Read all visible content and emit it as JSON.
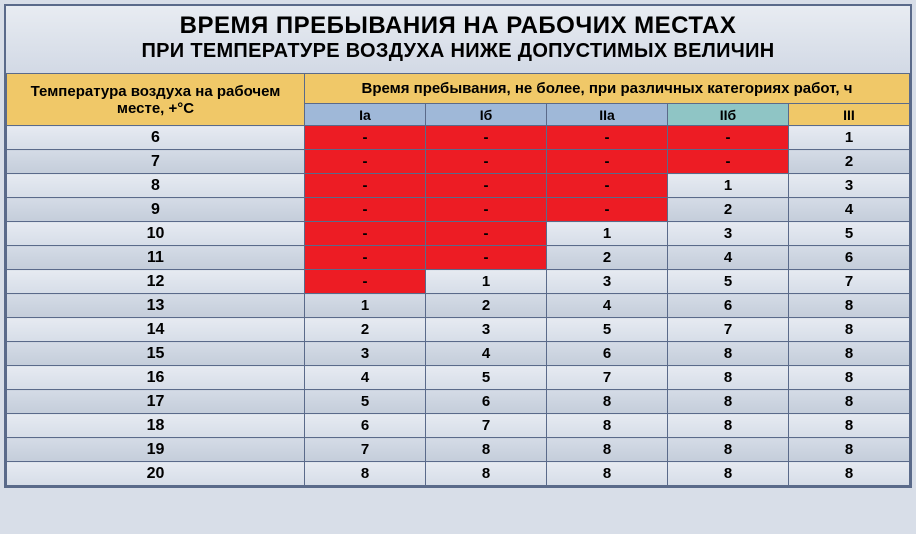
{
  "title_line1": "ВРЕМЯ ПРЕБЫВАНИЯ НА РАБОЧИХ МЕСТАХ",
  "title_line2": "ПРИ ТЕМПЕРАТУРЕ ВОЗДУХА НИЖЕ ДОПУСТИМЫХ ВЕЛИЧИН",
  "header_left": "Температура воздуха на рабочем месте, +°С",
  "header_right": "Время пребывания, не более, при различных категориях работ, ч",
  "categories": [
    "Iа",
    "Iб",
    "IIа",
    "IIб",
    "III"
  ],
  "category_colors": [
    "#9fb8d8",
    "#9fb8d8",
    "#9fb8d8",
    "#8fc5c5",
    "#f0c868"
  ],
  "colors": {
    "header_bg": "#f0c868",
    "border": "#5a6a8a",
    "red": "#ed1c24",
    "row_even_top": "#e6eaf1",
    "row_even_bot": "#d6dde8",
    "row_odd_top": "#d4dbe6",
    "row_odd_bot": "#c4cdda"
  },
  "rows": [
    {
      "t": "6",
      "v": [
        "-",
        "-",
        "-",
        "-",
        "1"
      ],
      "red": [
        true,
        true,
        true,
        true,
        false
      ]
    },
    {
      "t": "7",
      "v": [
        "-",
        "-",
        "-",
        "-",
        "2"
      ],
      "red": [
        true,
        true,
        true,
        true,
        false
      ]
    },
    {
      "t": "8",
      "v": [
        "-",
        "-",
        "-",
        "1",
        "3"
      ],
      "red": [
        true,
        true,
        true,
        false,
        false
      ]
    },
    {
      "t": "9",
      "v": [
        "-",
        "-",
        "-",
        "2",
        "4"
      ],
      "red": [
        true,
        true,
        true,
        false,
        false
      ]
    },
    {
      "t": "10",
      "v": [
        "-",
        "-",
        "1",
        "3",
        "5"
      ],
      "red": [
        true,
        true,
        false,
        false,
        false
      ]
    },
    {
      "t": "11",
      "v": [
        "-",
        "-",
        "2",
        "4",
        "6"
      ],
      "red": [
        true,
        true,
        false,
        false,
        false
      ]
    },
    {
      "t": "12",
      "v": [
        "-",
        "1",
        "3",
        "5",
        "7"
      ],
      "red": [
        true,
        false,
        false,
        false,
        false
      ]
    },
    {
      "t": "13",
      "v": [
        "1",
        "2",
        "4",
        "6",
        "8"
      ],
      "red": [
        false,
        false,
        false,
        false,
        false
      ]
    },
    {
      "t": "14",
      "v": [
        "2",
        "3",
        "5",
        "7",
        "8"
      ],
      "red": [
        false,
        false,
        false,
        false,
        false
      ]
    },
    {
      "t": "15",
      "v": [
        "3",
        "4",
        "6",
        "8",
        "8"
      ],
      "red": [
        false,
        false,
        false,
        false,
        false
      ]
    },
    {
      "t": "16",
      "v": [
        "4",
        "5",
        "7",
        "8",
        "8"
      ],
      "red": [
        false,
        false,
        false,
        false,
        false
      ]
    },
    {
      "t": "17",
      "v": [
        "5",
        "6",
        "8",
        "8",
        "8"
      ],
      "red": [
        false,
        false,
        false,
        false,
        false
      ]
    },
    {
      "t": "18",
      "v": [
        "6",
        "7",
        "8",
        "8",
        "8"
      ],
      "red": [
        false,
        false,
        false,
        false,
        false
      ]
    },
    {
      "t": "19",
      "v": [
        "7",
        "8",
        "8",
        "8",
        "8"
      ],
      "red": [
        false,
        false,
        false,
        false,
        false
      ]
    },
    {
      "t": "20",
      "v": [
        "8",
        "8",
        "8",
        "8",
        "8"
      ],
      "red": [
        false,
        false,
        false,
        false,
        false
      ]
    }
  ]
}
